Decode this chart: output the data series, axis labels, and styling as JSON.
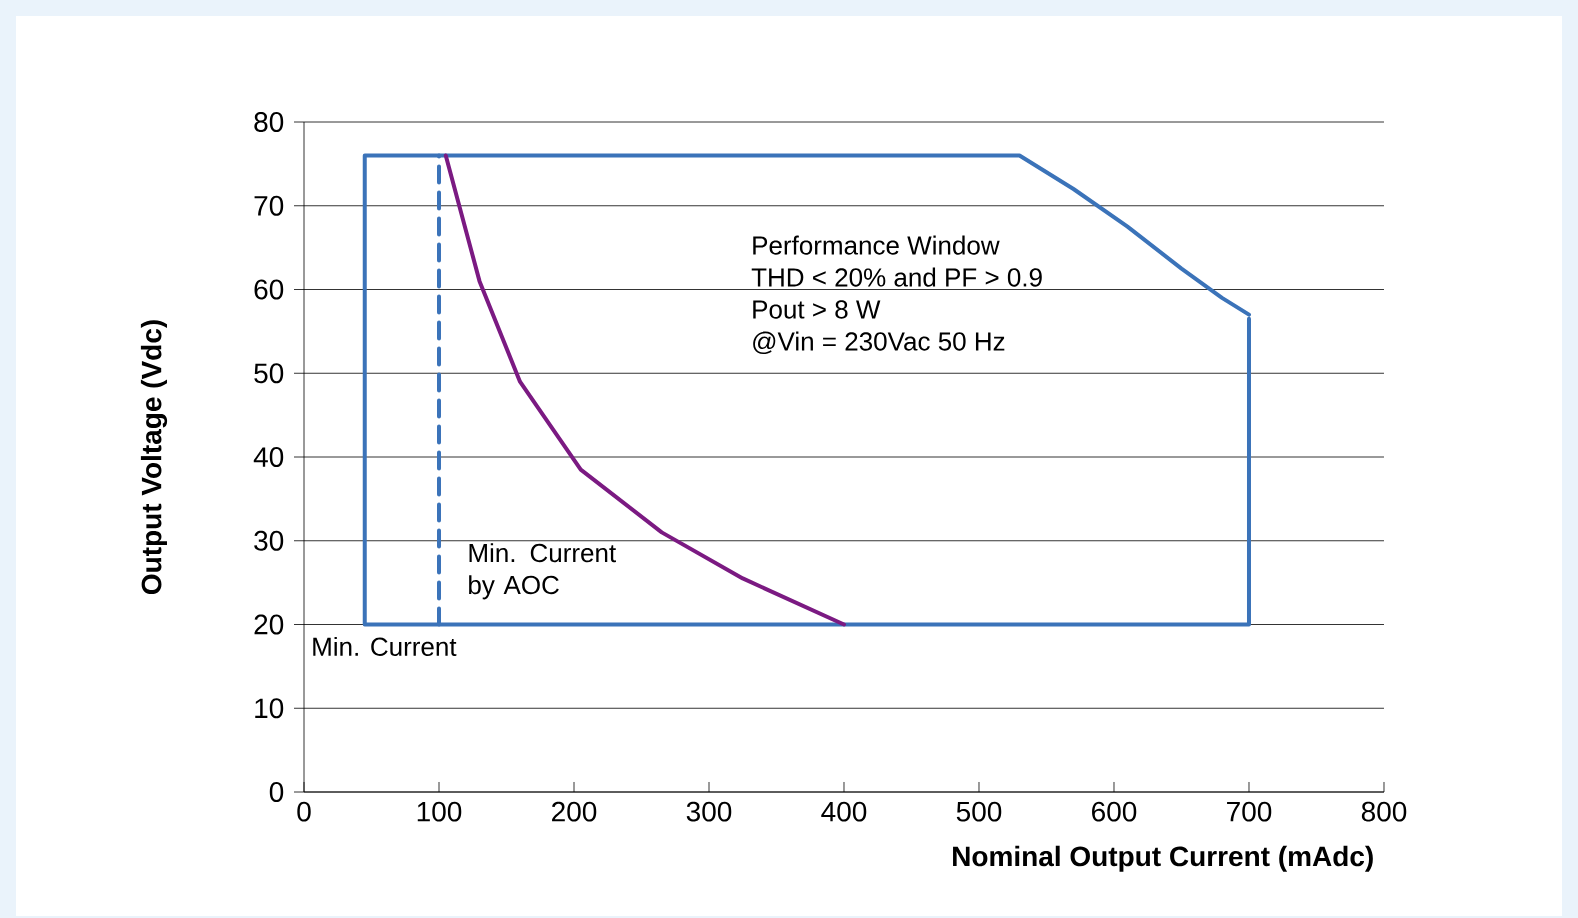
{
  "chart_data": {
    "type": "line",
    "xlabel": "Nominal Output Current (mAdc)",
    "ylabel": "Output Voltage (Vdc)",
    "xlim": [
      0,
      800
    ],
    "ylim": [
      0,
      80
    ],
    "xticks": [
      0,
      100,
      200,
      300,
      400,
      500,
      600,
      700,
      800
    ],
    "yticks": [
      0,
      10,
      20,
      30,
      40,
      50,
      60,
      70,
      80
    ],
    "grid": "y",
    "marker": "none",
    "series": [
      {
        "color": "#3b73b9",
        "line_style": "dashed",
        "x": [
          100,
          100
        ],
        "values": [
          20,
          76
        ]
      },
      {
        "color": "#3b73b9",
        "line_style": "solid",
        "x": [
          700,
          700,
          45,
          45,
          530,
          570,
          610,
          650,
          680,
          700
        ],
        "values": [
          56.5,
          20,
          20,
          76,
          76,
          72,
          67.5,
          62.5,
          59,
          57
        ]
      },
      {
        "color": "#7b1a82",
        "line_style": "solid",
        "x": [
          105,
          130,
          160,
          205,
          265,
          325,
          400
        ],
        "values": [
          76,
          61,
          49,
          38.5,
          31,
          25.5,
          20
        ]
      }
    ],
    "annotations": [
      "Performance Window",
      "THD < 20% and PF > 0.9",
      "Pout > 8 W",
      "@Vin = 230Vac 50 Hz",
      {
        "text": "Min. Current by AOC",
        "x": 100,
        "y": 30
      },
      {
        "text": "Min. Current",
        "x": 45,
        "y": 20
      }
    ]
  }
}
